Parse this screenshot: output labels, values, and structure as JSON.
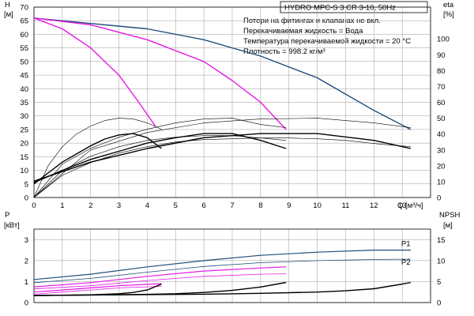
{
  "chart_data": [
    {
      "type": "line",
      "title": "HYDRO MPC-S 3 CR 3-10, 50Hz",
      "notes": [
        "Потери на фитингах и клапанах не вкл.",
        "Перекачиваемая жидкость = Вода",
        "Температура перекачиваемой жидкости = 20 °C",
        "Плотность = 998.2 кг/м³"
      ],
      "ylabel": [
        "H",
        "[м]"
      ],
      "y2label": [
        "eta",
        "[%]"
      ],
      "xlabel": "Q [м³/ч]",
      "xlim": [
        0,
        14
      ],
      "ylim": [
        0,
        70
      ],
      "y2lim": [
        0,
        120
      ],
      "xticks": [
        "0",
        "1",
        "2",
        "3",
        "4",
        "5",
        "6",
        "7",
        "8",
        "9",
        "10",
        "11",
        "12",
        "13"
      ],
      "yticks": [
        "0",
        "5",
        "10",
        "15",
        "20",
        "25",
        "30",
        "35",
        "40",
        "45",
        "50",
        "55",
        "60",
        "65",
        "70"
      ],
      "y2ticks": [
        "0",
        "10",
        "20",
        "30",
        "40",
        "50",
        "60",
        "70",
        "80",
        "90",
        "100"
      ],
      "grid": true,
      "series": [
        {
          "role": "head",
          "axis": "left",
          "color": "#1f4e79",
          "width": 1.4,
          "x": [
            0,
            2,
            4,
            6,
            8,
            10,
            12,
            13.3
          ],
          "y": [
            66,
            64,
            62,
            58,
            52,
            44,
            32,
            25
          ]
        },
        {
          "role": "head",
          "axis": "left",
          "color": "#e619e6",
          "width": 1.4,
          "x": [
            0,
            2,
            4,
            6,
            7,
            8,
            8.9
          ],
          "y": [
            66,
            63.5,
            58,
            50,
            43,
            35,
            25
          ]
        },
        {
          "role": "head",
          "axis": "left",
          "color": "#e619e6",
          "width": 1.4,
          "x": [
            0,
            1,
            2,
            3,
            3.7,
            4.3
          ],
          "y": [
            66,
            62,
            55,
            45,
            35,
            26
          ]
        },
        {
          "role": "npsh",
          "axis": "left",
          "color": "#000000",
          "width": 1.4,
          "x": [
            0,
            2,
            4,
            6,
            8,
            10,
            12,
            13.3
          ],
          "y": [
            6,
            13,
            18,
            22,
            23.5,
            23.5,
            21,
            18
          ]
        },
        {
          "role": "npsh",
          "axis": "left",
          "color": "#000000",
          "width": 1.4,
          "x": [
            0,
            1,
            2,
            3,
            4,
            5,
            6,
            7,
            8,
            8.9
          ],
          "y": [
            5.5,
            10,
            14,
            17,
            20,
            22,
            23.5,
            23.5,
            21,
            18
          ]
        },
        {
          "role": "npsh",
          "axis": "left",
          "color": "#000000",
          "width": 1.4,
          "x": [
            0,
            0.5,
            1,
            1.5,
            2,
            2.5,
            3,
            3.5,
            4,
            4.5
          ],
          "y": [
            5,
            9,
            13,
            16,
            19,
            21.5,
            23,
            23.5,
            22,
            18
          ]
        },
        {
          "role": "eta",
          "axis": "right",
          "color": "#000000",
          "width": 0.6,
          "x": [
            0,
            2,
            4,
            6,
            8,
            10,
            12,
            13.3
          ],
          "y": [
            0,
            30,
            41,
            47,
            49.5,
            50,
            47,
            44
          ]
        },
        {
          "role": "eta",
          "axis": "right",
          "color": "#000000",
          "width": 0.6,
          "x": [
            0,
            1,
            2,
            3,
            4,
            5,
            6,
            7,
            8,
            8.9
          ],
          "y": [
            0,
            21,
            31,
            38,
            43,
            47,
            49.5,
            50,
            46,
            44
          ]
        },
        {
          "role": "eta",
          "axis": "right",
          "color": "#000000",
          "width": 0.6,
          "x": [
            0,
            0.5,
            1,
            1.5,
            2,
            2.5,
            3,
            3.5,
            4,
            4.5
          ],
          "y": [
            0,
            20,
            32,
            40,
            45,
            48.5,
            50,
            49.5,
            47,
            43
          ]
        },
        {
          "role": "eta",
          "axis": "right",
          "color": "#000000",
          "width": 0.6,
          "x": [
            0,
            1,
            2,
            3,
            4,
            5,
            6,
            7,
            8,
            9,
            10,
            11,
            12,
            13.3
          ],
          "y": [
            0,
            14,
            22,
            28,
            32,
            35,
            36.5,
            37,
            37.5,
            37.5,
            37,
            36,
            34,
            32
          ]
        },
        {
          "role": "eta",
          "axis": "right",
          "color": "#000000",
          "width": 0.6,
          "x": [
            0,
            1,
            2,
            3,
            4,
            5,
            6,
            7,
            8,
            8.9
          ],
          "y": [
            0,
            17,
            26,
            32,
            36,
            38,
            39,
            39,
            37.5,
            36
          ]
        }
      ]
    },
    {
      "type": "line",
      "ylabel": [
        "P",
        "[кВт]"
      ],
      "y2label": [
        "NPSH",
        "[м]"
      ],
      "xlim": [
        0,
        14
      ],
      "ylim": [
        0,
        3.5
      ],
      "y2lim": [
        0,
        17.5
      ],
      "yticks": [
        "0",
        "1",
        "2",
        "3"
      ],
      "y2ticks": [
        "0",
        "5",
        "10",
        "15"
      ],
      "grid": true,
      "series": [
        {
          "name": "P1",
          "axis": "left",
          "color": "#1f4e79",
          "width": 1.2,
          "x": [
            0,
            2,
            4,
            6,
            8,
            10,
            12,
            13.3
          ],
          "y": [
            1.1,
            1.35,
            1.7,
            2.0,
            2.25,
            2.4,
            2.5,
            2.5
          ]
        },
        {
          "name": "P2",
          "axis": "left",
          "color": "#1f4e79",
          "width": 0.8,
          "x": [
            0,
            2,
            4,
            6,
            8,
            10,
            12,
            13.3
          ],
          "y": [
            0.95,
            1.15,
            1.45,
            1.72,
            1.9,
            2.0,
            2.05,
            2.07
          ]
        },
        {
          "axis": "left",
          "color": "#e619e6",
          "width": 1.2,
          "x": [
            0,
            2,
            4,
            6,
            8,
            8.9
          ],
          "y": [
            0.75,
            0.95,
            1.25,
            1.5,
            1.65,
            1.7
          ]
        },
        {
          "axis": "left",
          "color": "#e619e6",
          "width": 0.8,
          "x": [
            0,
            2,
            4,
            6,
            8,
            8.9
          ],
          "y": [
            0.65,
            0.8,
            1.05,
            1.25,
            1.35,
            1.37
          ]
        },
        {
          "axis": "left",
          "color": "#e619e6",
          "width": 1.2,
          "x": [
            0,
            1,
            2,
            3,
            4,
            4.5
          ],
          "y": [
            0.5,
            0.6,
            0.7,
            0.8,
            0.87,
            0.9
          ]
        },
        {
          "axis": "left",
          "color": "#e619e6",
          "width": 0.8,
          "x": [
            0,
            1,
            2,
            3,
            4,
            4.5
          ],
          "y": [
            0.4,
            0.5,
            0.6,
            0.7,
            0.75,
            0.77
          ]
        },
        {
          "axis": "right",
          "color": "#000000",
          "width": 1.4,
          "x": [
            0,
            2,
            4,
            6,
            8,
            10,
            11,
            12,
            13,
            13.3
          ],
          "y": [
            1.7,
            1.8,
            1.9,
            2.0,
            2.2,
            2.5,
            2.8,
            3.3,
            4.4,
            4.8
          ]
        },
        {
          "axis": "right",
          "color": "#000000",
          "width": 1.4,
          "x": [
            0,
            2,
            4,
            5,
            6,
            7,
            8,
            8.9
          ],
          "y": [
            1.7,
            1.8,
            1.95,
            2.1,
            2.4,
            2.9,
            3.7,
            4.8
          ]
        },
        {
          "axis": "right",
          "color": "#000000",
          "width": 1.4,
          "x": [
            0,
            1,
            2,
            3,
            3.5,
            4,
            4.5
          ],
          "y": [
            1.7,
            1.75,
            1.85,
            2.1,
            2.4,
            3.0,
            4.4
          ]
        }
      ]
    }
  ]
}
